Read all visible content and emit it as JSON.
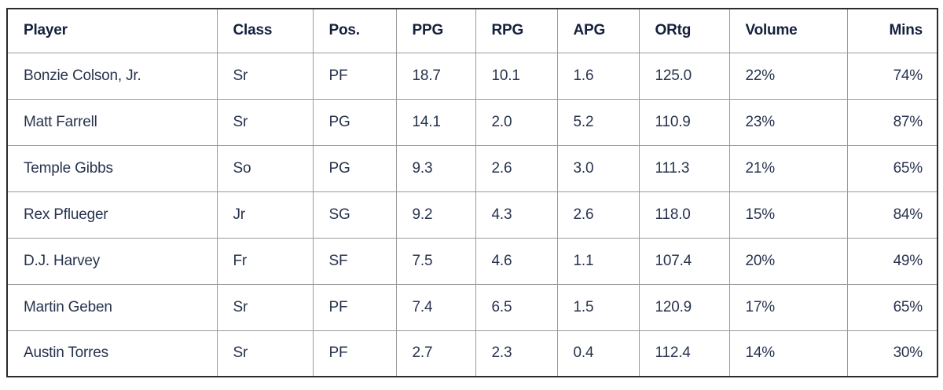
{
  "chart_data": {
    "type": "table",
    "title": "",
    "columns": [
      {
        "label": "Player",
        "align": "left"
      },
      {
        "label": "Class",
        "align": "left"
      },
      {
        "label": "Pos.",
        "align": "left"
      },
      {
        "label": "PPG",
        "align": "left"
      },
      {
        "label": "RPG",
        "align": "left"
      },
      {
        "label": "APG",
        "align": "left"
      },
      {
        "label": "ORtg",
        "align": "left"
      },
      {
        "label": "Volume",
        "align": "left"
      },
      {
        "label": "Mins",
        "align": "right"
      }
    ],
    "rows": [
      [
        "Bonzie Colson, Jr.",
        "Sr",
        "PF",
        "18.7",
        "10.1",
        "1.6",
        "125.0",
        "22%",
        "74%"
      ],
      [
        "Matt Farrell",
        "Sr",
        "PG",
        "14.1",
        "2.0",
        "5.2",
        "110.9",
        "23%",
        "87%"
      ],
      [
        "Temple Gibbs",
        "So",
        "PG",
        "9.3",
        "2.6",
        "3.0",
        "111.3",
        "21%",
        "65%"
      ],
      [
        "Rex Pflueger",
        "Jr",
        "SG",
        "9.2",
        "4.3",
        "2.6",
        "118.0",
        "15%",
        "84%"
      ],
      [
        "D.J. Harvey",
        "Fr",
        "SF",
        "7.5",
        "4.6",
        "1.1",
        "107.4",
        "20%",
        "49%"
      ],
      [
        "Martin Geben",
        "Sr",
        "PF",
        "7.4",
        "6.5",
        "1.5",
        "120.9",
        "17%",
        "65%"
      ],
      [
        "Austin Torres",
        "Sr",
        "PF",
        "2.7",
        "2.3",
        "0.4",
        "112.4",
        "14%",
        "30%"
      ]
    ],
    "colors": {
      "header_text": "#14203c",
      "body_text": "#27334e",
      "outer_border": "#2b2b2b",
      "inner_border": "#999999",
      "background": "#ffffff"
    }
  }
}
